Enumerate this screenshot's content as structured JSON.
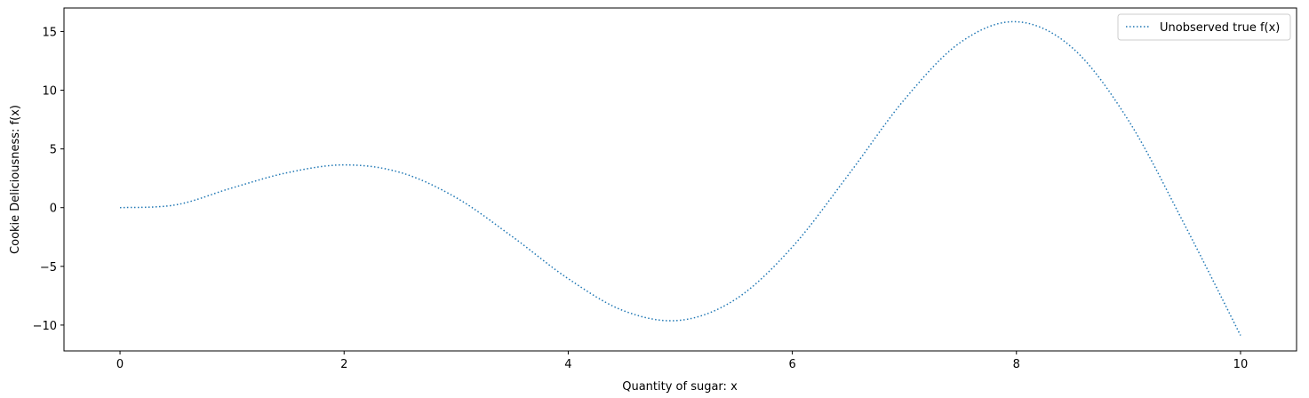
{
  "chart_data": {
    "type": "line",
    "title": "",
    "xlabel": "Quantity of sugar: x",
    "ylabel": "Cookie Deliciousness: f(x)",
    "xlim": [
      -0.5,
      10.5
    ],
    "ylim": [
      -12.2,
      17.0
    ],
    "xticks": [
      0,
      2,
      4,
      6,
      8,
      10
    ],
    "yticks": [
      -10,
      -5,
      0,
      5,
      10,
      15
    ],
    "xtick_labels": [
      "0",
      "2",
      "4",
      "6",
      "8",
      "10"
    ],
    "ytick_labels": [
      "−10",
      "−5",
      "0",
      "5",
      "10",
      "15"
    ],
    "grid": false,
    "legend": {
      "position": "top-right"
    },
    "series": [
      {
        "name": "Unobserved true f(x)",
        "color": "#1f77b4",
        "line_style": "dotted",
        "x": [
          0,
          0.5,
          1,
          1.5,
          2,
          2.5,
          3,
          3.5,
          4,
          4.5,
          5,
          5.5,
          6,
          6.5,
          7,
          7.5,
          8,
          8.5,
          9,
          9.5,
          10
        ],
        "y": [
          0,
          0.24,
          1.68,
          2.99,
          3.64,
          3.0,
          0.85,
          -2.46,
          -6.05,
          -8.8,
          -9.59,
          -7.76,
          -3.35,
          2.79,
          9.2,
          14.07,
          15.83,
          13.6,
          7.42,
          -1.44,
          -10.88
        ]
      }
    ]
  }
}
